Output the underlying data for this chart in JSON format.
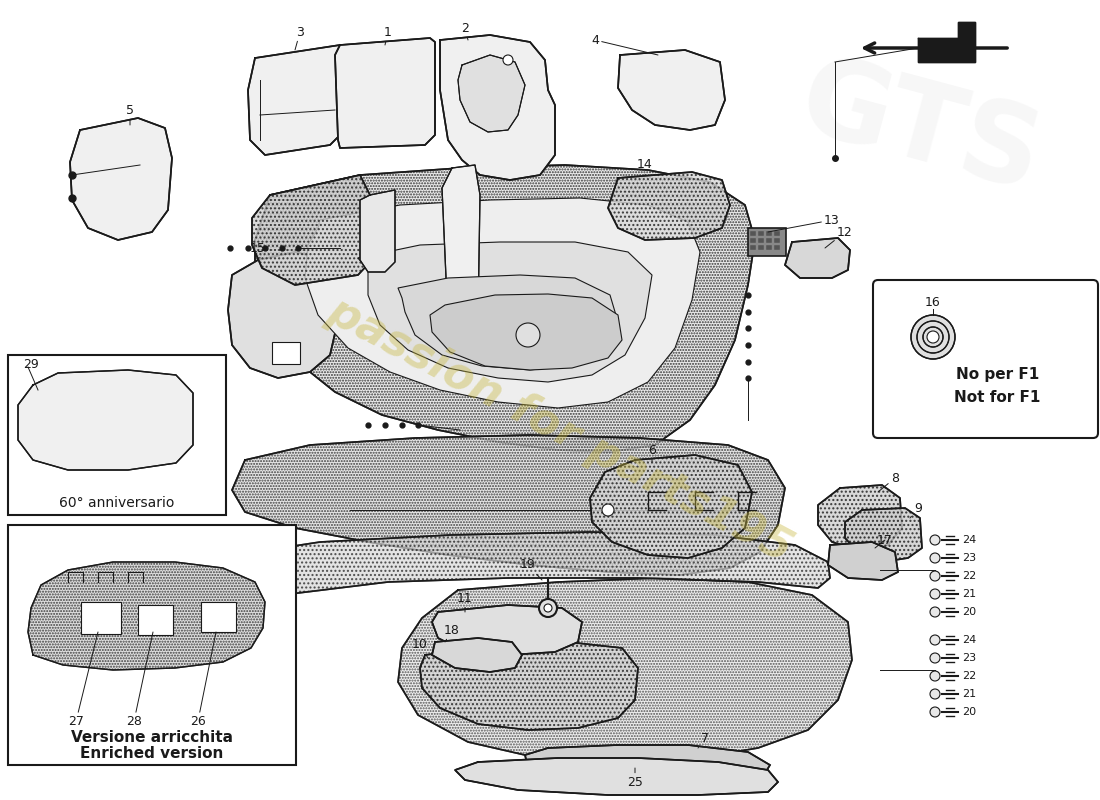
{
  "bg_color": "#ffffff",
  "line_color": "#1a1a1a",
  "watermark_color": "#c8b840",
  "watermark_text": "passion for parts195",
  "inset1_label": "60° anniversario",
  "inset2_label1": "Versione arricchita",
  "inset2_label2": "Enriched version",
  "f1_label1": "No per F1",
  "f1_label2": "Not for F1",
  "hatch_gray": "#d0d0d0",
  "light_gray": "#e8e8e8",
  "mid_gray": "#c8c8c8",
  "canvas_xlim": [
    0,
    1100
  ],
  "canvas_ylim": [
    800,
    0
  ]
}
